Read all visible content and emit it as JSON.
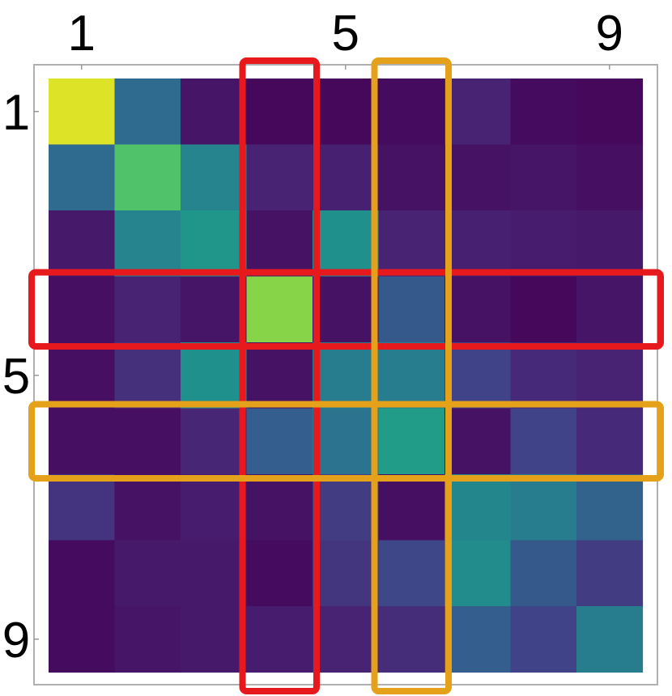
{
  "chart_data": {
    "type": "heatmap",
    "title": "",
    "xlabel": "",
    "ylabel": "",
    "x_tick_labels": [
      {
        "label": "1",
        "index": 1
      },
      {
        "label": "5",
        "index": 5
      },
      {
        "label": "9",
        "index": 9
      }
    ],
    "y_tick_labels": [
      {
        "label": "1",
        "index": 1
      },
      {
        "label": "5",
        "index": 5
      },
      {
        "label": "9",
        "index": 9
      }
    ],
    "rows": 9,
    "cols": 9,
    "values": [
      [
        0.95,
        0.35,
        0.06,
        0.02,
        0.02,
        0.03,
        0.1,
        0.03,
        0.02
      ],
      [
        0.35,
        0.72,
        0.45,
        0.1,
        0.09,
        0.05,
        0.05,
        0.06,
        0.04
      ],
      [
        0.07,
        0.45,
        0.52,
        0.05,
        0.5,
        0.1,
        0.09,
        0.08,
        0.07
      ],
      [
        0.04,
        0.1,
        0.06,
        0.82,
        0.05,
        0.28,
        0.05,
        0.02,
        0.06
      ],
      [
        0.04,
        0.14,
        0.5,
        0.05,
        0.42,
        0.42,
        0.2,
        0.12,
        0.1
      ],
      [
        0.04,
        0.04,
        0.11,
        0.3,
        0.38,
        0.55,
        0.05,
        0.2,
        0.12
      ],
      [
        0.15,
        0.05,
        0.08,
        0.05,
        0.18,
        0.04,
        0.46,
        0.42,
        0.32
      ],
      [
        0.03,
        0.07,
        0.07,
        0.03,
        0.16,
        0.22,
        0.48,
        0.28,
        0.18
      ],
      [
        0.03,
        0.06,
        0.07,
        0.08,
        0.1,
        0.13,
        0.3,
        0.2,
        0.42
      ]
    ],
    "colormap": "viridis",
    "grid": false,
    "highlights": [
      {
        "kind": "row",
        "index": 4,
        "color": "#e8191c"
      },
      {
        "kind": "column",
        "index": 4,
        "color": "#e8191c"
      },
      {
        "kind": "row",
        "index": 6,
        "color": "#e5a11a"
      },
      {
        "kind": "column",
        "index": 6,
        "color": "#e5a11a"
      }
    ]
  }
}
